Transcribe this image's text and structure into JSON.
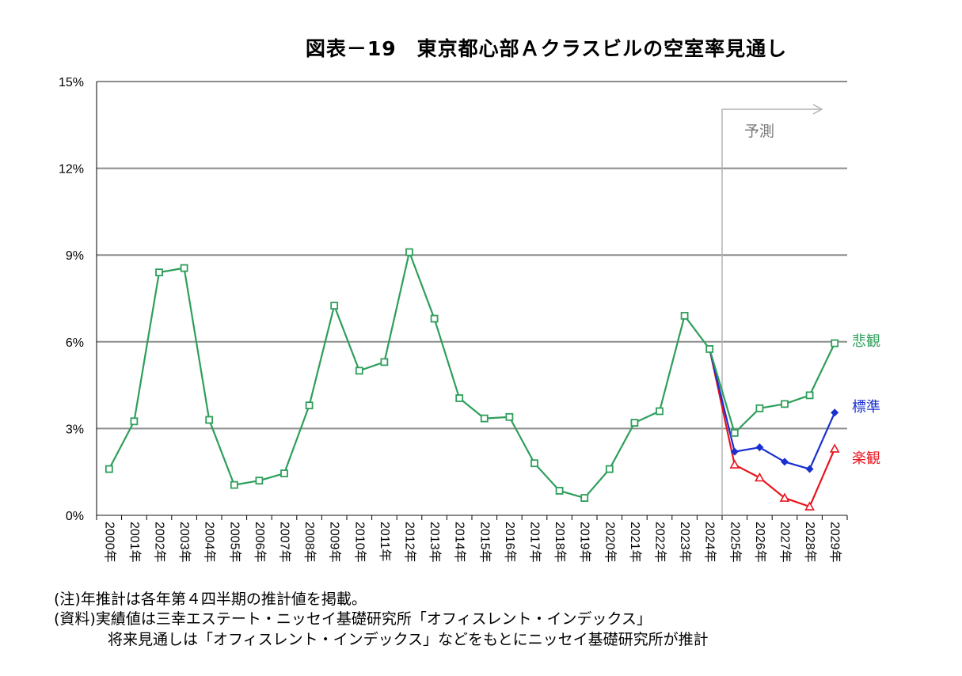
{
  "chart_data": {
    "type": "line",
    "title": "図表－19　東京都心部Ａクラスビルの空室率見通し",
    "xlabel": "",
    "ylabel": "",
    "ylim": [
      0,
      15
    ],
    "yticks": [
      "0%",
      "3%",
      "6%",
      "9%",
      "12%",
      "15%"
    ],
    "ytick_values": [
      0,
      3,
      6,
      9,
      12,
      15
    ],
    "grid": "horizontal",
    "x": [
      "2000年",
      "2001年",
      "2002年",
      "2003年",
      "2004年",
      "2005年",
      "2006年",
      "2007年",
      "2008年",
      "2009年",
      "2010年",
      "2011年",
      "2012年",
      "2013年",
      "2014年",
      "2015年",
      "2016年",
      "2017年",
      "2018年",
      "2019年",
      "2020年",
      "2021年",
      "2022年",
      "2023年",
      "2024年",
      "2025年",
      "2026年",
      "2027年",
      "2028年",
      "2029年"
    ],
    "forecast_label": "予測",
    "forecast_start": "2024年",
    "series": [
      {
        "name": "悲観",
        "color": "#2e9e5b",
        "marker": "square",
        "values": [
          1.6,
          3.25,
          8.4,
          8.55,
          3.3,
          1.05,
          1.2,
          1.45,
          3.8,
          7.25,
          5.0,
          5.3,
          9.1,
          6.8,
          4.05,
          3.35,
          3.4,
          1.8,
          0.85,
          0.6,
          1.6,
          3.2,
          3.6,
          6.9,
          5.75,
          2.85,
          3.7,
          3.85,
          4.15,
          5.95
        ]
      },
      {
        "name": "標準",
        "color": "#1a2fd0",
        "marker": "diamond",
        "values": [
          null,
          null,
          null,
          null,
          null,
          null,
          null,
          null,
          null,
          null,
          null,
          null,
          null,
          null,
          null,
          null,
          null,
          null,
          null,
          null,
          null,
          null,
          null,
          null,
          5.75,
          2.2,
          2.35,
          1.85,
          1.6,
          3.55
        ]
      },
      {
        "name": "楽観",
        "color": "#e8141e",
        "marker": "triangle",
        "values": [
          null,
          null,
          null,
          null,
          null,
          null,
          null,
          null,
          null,
          null,
          null,
          null,
          null,
          null,
          null,
          null,
          null,
          null,
          null,
          null,
          null,
          null,
          null,
          null,
          5.75,
          1.75,
          1.3,
          0.6,
          0.3,
          2.3
        ]
      }
    ],
    "legend_placement": "right of line ends"
  },
  "notes": [
    "(注)年推計は各年第４四半期の推計値を掲載。",
    "(資料)実績値は三幸エステート・ニッセイ基礎研究所「オフィスレント・インデックス」",
    "将来見通しは「オフィスレント・インデックス」などをもとにニッセイ基礎研究所が推計"
  ]
}
